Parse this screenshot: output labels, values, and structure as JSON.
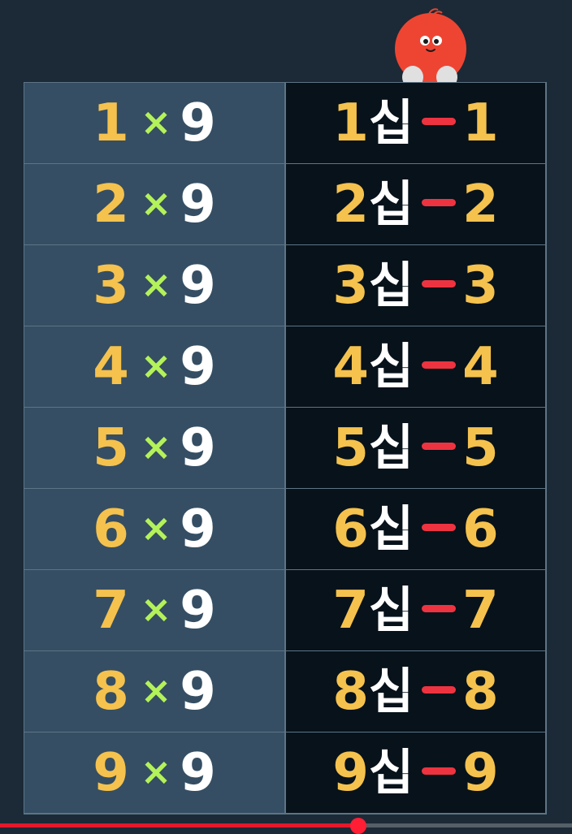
{
  "rows": [
    {
      "mult": "1",
      "times": "×",
      "nine": "9",
      "lead": "1",
      "sip": "십",
      "sub": "1"
    },
    {
      "mult": "2",
      "times": "×",
      "nine": "9",
      "lead": "2",
      "sip": "십",
      "sub": "2"
    },
    {
      "mult": "3",
      "times": "×",
      "nine": "9",
      "lead": "3",
      "sip": "십",
      "sub": "3"
    },
    {
      "mult": "4",
      "times": "×",
      "nine": "9",
      "lead": "4",
      "sip": "십",
      "sub": "4"
    },
    {
      "mult": "5",
      "times": "×",
      "nine": "9",
      "lead": "5",
      "sip": "십",
      "sub": "5"
    },
    {
      "mult": "6",
      "times": "×",
      "nine": "9",
      "lead": "6",
      "sip": "십",
      "sub": "6"
    },
    {
      "mult": "7",
      "times": "×",
      "nine": "9",
      "lead": "7",
      "sip": "십",
      "sub": "7"
    },
    {
      "mult": "8",
      "times": "×",
      "nine": "9",
      "lead": "8",
      "sip": "십",
      "sub": "8"
    },
    {
      "mult": "9",
      "times": "×",
      "nine": "9",
      "lead": "9",
      "sip": "십",
      "sub": "9"
    }
  ],
  "colors": {
    "background": "#1b2a36",
    "left_cell": "#354e63",
    "right_cell": "#07121b",
    "digit_yellow": "#f5c24e",
    "times_green": "#b4f25a",
    "minus_red": "#ee3340",
    "progress_red": "#e5182b"
  },
  "icons": {
    "mascot": "red-ball-mascot-icon",
    "minus": "minus-sign-icon"
  },
  "video": {
    "progress_fraction": 0.627
  }
}
